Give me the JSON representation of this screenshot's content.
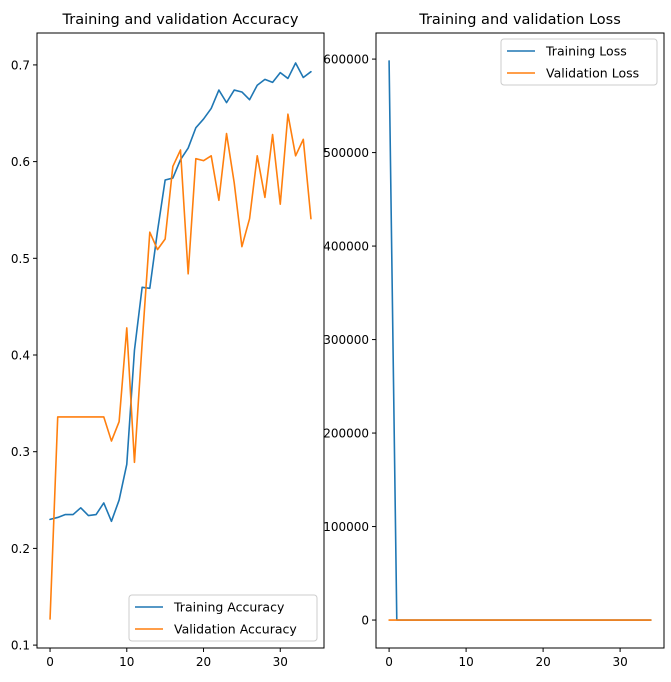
{
  "chart_data": [
    {
      "type": "line",
      "title": "Training and validation Accuracy",
      "xlabel": "",
      "ylabel": "",
      "xlim": [
        -1.7,
        35.7
      ],
      "ylim": [
        0.097,
        0.733
      ],
      "xticks": [
        0,
        10,
        20,
        30
      ],
      "xtick_labels": [
        "0",
        "10",
        "20",
        "30"
      ],
      "yticks": [
        0.1,
        0.2,
        0.3,
        0.4,
        0.5,
        0.6,
        0.7
      ],
      "ytick_labels": [
        "0.1",
        "0.2",
        "0.3",
        "0.4",
        "0.5",
        "0.6",
        "0.7"
      ],
      "grid": false,
      "legend_position": "lower-right",
      "x": [
        0,
        1,
        2,
        3,
        4,
        5,
        6,
        7,
        8,
        9,
        10,
        11,
        12,
        13,
        14,
        15,
        16,
        17,
        18,
        19,
        20,
        21,
        22,
        23,
        24,
        25,
        26,
        27,
        28,
        29,
        30,
        31,
        32,
        33,
        34
      ],
      "series": [
        {
          "name": "Training Accuracy",
          "color": "#1f77b4",
          "values": [
            0.23,
            0.232,
            0.235,
            0.235,
            0.242,
            0.234,
            0.235,
            0.247,
            0.228,
            0.25,
            0.287,
            0.405,
            0.47,
            0.469,
            0.528,
            0.581,
            0.583,
            0.602,
            0.614,
            0.635,
            0.644,
            0.655,
            0.674,
            0.661,
            0.674,
            0.672,
            0.664,
            0.679,
            0.685,
            0.682,
            0.692,
            0.686,
            0.702,
            0.687,
            0.693
          ]
        },
        {
          "name": "Validation Accuracy",
          "color": "#ff7f0e",
          "values": [
            0.127,
            0.336,
            0.336,
            0.336,
            0.336,
            0.336,
            0.336,
            0.336,
            0.311,
            0.331,
            0.428,
            0.289,
            0.412,
            0.527,
            0.509,
            0.52,
            0.595,
            0.612,
            0.484,
            0.603,
            0.601,
            0.606,
            0.56,
            0.629,
            0.578,
            0.512,
            0.541,
            0.606,
            0.563,
            0.628,
            0.556,
            0.649,
            0.606,
            0.623,
            0.541
          ]
        }
      ]
    },
    {
      "type": "line",
      "title": "Training and validation Loss",
      "xlabel": "",
      "ylabel": "",
      "xlim": [
        -1.7,
        35.7
      ],
      "ylim": [
        -29900,
        627900
      ],
      "xticks": [
        0,
        10,
        20,
        30
      ],
      "xtick_labels": [
        "0",
        "10",
        "20",
        "30"
      ],
      "yticks": [
        0,
        100000,
        200000,
        300000,
        400000,
        500000,
        600000
      ],
      "ytick_labels": [
        "0",
        "100000",
        "200000",
        "300000",
        "400000",
        "500000",
        "600000"
      ],
      "grid": false,
      "legend_position": "upper-right",
      "x": [
        0,
        1,
        2,
        3,
        4,
        5,
        6,
        7,
        8,
        9,
        10,
        11,
        12,
        13,
        14,
        15,
        16,
        17,
        18,
        19,
        20,
        21,
        22,
        23,
        24,
        25,
        26,
        27,
        28,
        29,
        30,
        31,
        32,
        33,
        34
      ],
      "series": [
        {
          "name": "Training Loss",
          "color": "#1f77b4",
          "values": [
            598000,
            1.5,
            1.4,
            1.4,
            1.4,
            1.4,
            1.4,
            1.4,
            1.4,
            1.4,
            1.3,
            1.2,
            1.1,
            1.1,
            1.0,
            1.0,
            1.0,
            0.9,
            0.9,
            0.9,
            0.9,
            0.9,
            0.8,
            0.8,
            0.8,
            0.8,
            0.8,
            0.8,
            0.8,
            0.8,
            0.8,
            0.8,
            0.7,
            0.7,
            0.7
          ]
        },
        {
          "name": "Validation Loss",
          "color": "#ff7f0e",
          "values": [
            2.5,
            1.4,
            1.4,
            1.4,
            1.4,
            1.4,
            1.4,
            1.4,
            1.4,
            1.3,
            1.3,
            1.5,
            1.3,
            1.1,
            1.1,
            1.1,
            1.0,
            1.0,
            1.2,
            1.0,
            1.0,
            1.0,
            1.1,
            1.0,
            1.0,
            1.1,
            1.1,
            1.0,
            1.1,
            1.0,
            1.1,
            0.9,
            1.0,
            1.0,
            1.1
          ]
        }
      ]
    }
  ]
}
